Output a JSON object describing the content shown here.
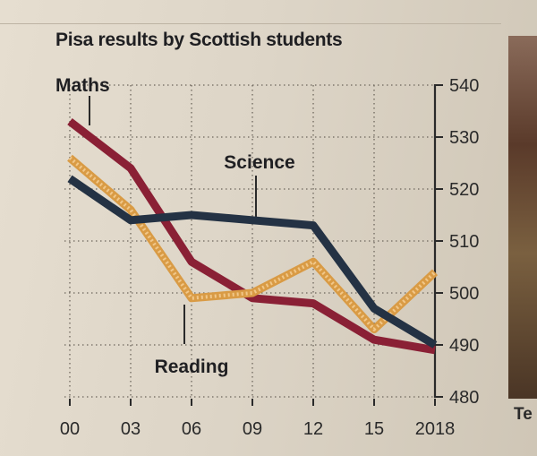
{
  "chart_data": {
    "type": "line",
    "title": "Pisa results by Scottish students",
    "xlabel": "",
    "ylabel": "",
    "x": [
      2000,
      2003,
      2006,
      2009,
      2012,
      2015,
      2018
    ],
    "x_tick_labels": [
      "00",
      "03",
      "06",
      "09",
      "12",
      "15",
      "2018"
    ],
    "ylim": [
      480,
      540
    ],
    "y_ticks": [
      480,
      490,
      500,
      510,
      520,
      530,
      540
    ],
    "y_axis_side": "right",
    "grid": true,
    "series": [
      {
        "name": "Maths",
        "values": [
          533,
          524,
          506,
          499,
          498,
          491,
          489
        ],
        "color": "#8a2035"
      },
      {
        "name": "Reading",
        "values": [
          526,
          516,
          499,
          500,
          506,
          493,
          504
        ],
        "color": "#d99b45"
      },
      {
        "name": "Science",
        "values": [
          522,
          514,
          515,
          514,
          513,
          497,
          490
        ],
        "color": "#243244"
      }
    ]
  },
  "edge_text": "Te"
}
